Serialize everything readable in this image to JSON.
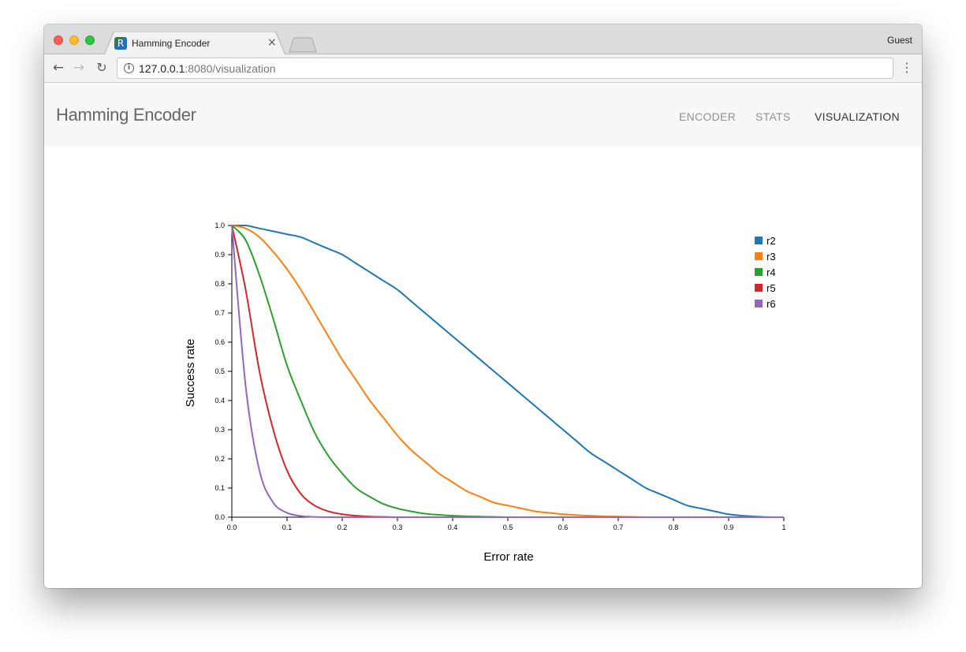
{
  "browser": {
    "tab_title": "Hamming Encoder",
    "tab_favicon_letter": "R",
    "tab_close": "×",
    "profile": "Guest",
    "url_host": "127.0.0.1",
    "url_rest": ":8080/visualization",
    "icons": {
      "back": "arrow-left-icon",
      "forward": "arrow-right-icon",
      "reload": "reload-icon",
      "info": "info-icon",
      "menu": "more-vert-icon"
    }
  },
  "app": {
    "brand": "Hamming Encoder",
    "nav": [
      {
        "label": "ENCODER",
        "active": false
      },
      {
        "label": "STATS",
        "active": false
      },
      {
        "label": "VISUALIZATION",
        "active": true
      }
    ]
  },
  "chart_data": {
    "type": "line",
    "title": "",
    "xlabel": "Error rate",
    "ylabel": "Success rate",
    "xlim": [
      0,
      1
    ],
    "ylim": [
      0,
      1
    ],
    "x_ticks": [
      "0.0",
      "0.1",
      "0.2",
      "0.3",
      "0.4",
      "0.5",
      "0.6",
      "0.7",
      "0.8",
      "0.9",
      "1"
    ],
    "y_ticks": [
      "0.0",
      "0.1",
      "0.2",
      "0.3",
      "0.4",
      "0.5",
      "0.6",
      "0.7",
      "0.8",
      "0.9",
      "1.0"
    ],
    "grid": false,
    "legend_position": "top-right",
    "x": [
      0,
      0.025,
      0.05,
      0.075,
      0.1,
      0.125,
      0.15,
      0.175,
      0.2,
      0.225,
      0.25,
      0.275,
      0.3,
      0.325,
      0.35,
      0.375,
      0.4,
      0.425,
      0.45,
      0.475,
      0.5,
      0.525,
      0.55,
      0.575,
      0.6,
      0.625,
      0.65,
      0.675,
      0.7,
      0.725,
      0.75,
      0.775,
      0.8,
      0.825,
      0.85,
      0.875,
      0.9,
      0.925,
      0.95,
      0.975,
      1
    ],
    "series": [
      {
        "name": "r2",
        "color": "#1f77b4",
        "values": [
          1,
          1,
          0.99,
          0.98,
          0.97,
          0.96,
          0.94,
          0.92,
          0.9,
          0.87,
          0.84,
          0.81,
          0.78,
          0.74,
          0.7,
          0.66,
          0.62,
          0.58,
          0.54,
          0.5,
          0.46,
          0.42,
          0.38,
          0.34,
          0.3,
          0.26,
          0.22,
          0.19,
          0.16,
          0.13,
          0.1,
          0.08,
          0.06,
          0.04,
          0.03,
          0.02,
          0.01,
          0.005,
          0.002,
          0,
          0
        ]
      },
      {
        "name": "r3",
        "color": "#ff7f0e",
        "values": [
          1,
          0.99,
          0.96,
          0.91,
          0.85,
          0.78,
          0.7,
          0.62,
          0.54,
          0.47,
          0.4,
          0.34,
          0.28,
          0.23,
          0.19,
          0.15,
          0.12,
          0.09,
          0.07,
          0.05,
          0.04,
          0.03,
          0.02,
          0.015,
          0.01,
          0.007,
          0.005,
          0.003,
          0.002,
          0.001,
          0,
          0,
          0,
          0,
          0,
          0,
          0,
          0,
          0,
          0,
          0
        ]
      },
      {
        "name": "r4",
        "color": "#2ca02c",
        "values": [
          1,
          0.95,
          0.83,
          0.68,
          0.52,
          0.4,
          0.29,
          0.21,
          0.15,
          0.1,
          0.07,
          0.045,
          0.03,
          0.02,
          0.012,
          0.008,
          0.005,
          0.003,
          0.002,
          0.001,
          0,
          0,
          0,
          0,
          0,
          0,
          0,
          0,
          0,
          0,
          0,
          0,
          0,
          0,
          0,
          0,
          0,
          0,
          0,
          0,
          0
        ]
      },
      {
        "name": "r5",
        "color": "#d62728",
        "values": [
          1,
          0.78,
          0.5,
          0.3,
          0.16,
          0.08,
          0.04,
          0.02,
          0.01,
          0.005,
          0.002,
          0.001,
          0,
          0,
          0,
          0,
          0,
          0,
          0,
          0,
          0,
          0,
          0,
          0,
          0,
          0,
          0,
          0,
          0,
          0,
          0,
          0,
          0,
          0,
          0,
          0,
          0,
          0,
          0,
          0,
          0
        ]
      },
      {
        "name": "r6",
        "color": "#9467bd",
        "values": [
          1,
          0.45,
          0.16,
          0.05,
          0.015,
          0.004,
          0.001,
          0,
          0,
          0,
          0,
          0,
          0,
          0,
          0,
          0,
          0,
          0,
          0,
          0,
          0,
          0,
          0,
          0,
          0,
          0,
          0,
          0,
          0,
          0,
          0,
          0,
          0,
          0,
          0,
          0,
          0,
          0,
          0,
          0,
          0
        ]
      }
    ]
  }
}
